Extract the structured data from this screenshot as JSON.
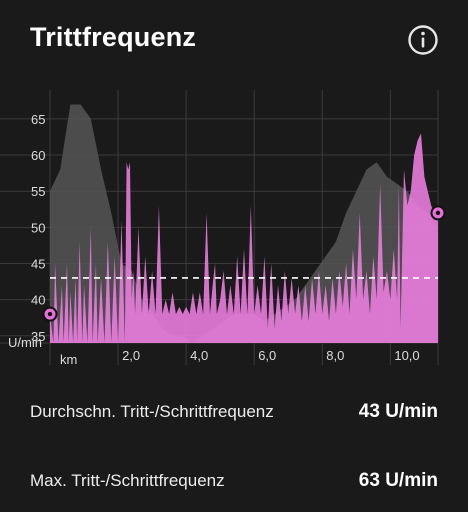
{
  "header": {
    "title": "Trittfrequenz",
    "info_icon": "info-circle-icon"
  },
  "stats": {
    "avg_label": "Durchschn. Tritt-/Schrittfrequenz",
    "avg_value": "43 U/min",
    "max_label": "Max. Tritt-/Schrittfrequenz",
    "max_value": "63 U/min"
  },
  "chart_data": {
    "type": "area",
    "xlabel": "km",
    "ylabel": "U/min",
    "xlim": [
      0,
      11.4
    ],
    "ylim": [
      34,
      69
    ],
    "x_ticks": [
      "2,0",
      "4,0",
      "6,0",
      "8,0",
      "10,0"
    ],
    "x_tick_values": [
      2,
      4,
      6,
      8,
      10
    ],
    "y_ticks": [
      "35",
      "40",
      "45",
      "50",
      "55",
      "60",
      "65"
    ],
    "y_tick_values": [
      35,
      40,
      45,
      50,
      55,
      60,
      65
    ],
    "grid": true,
    "average_line": 43,
    "colors": {
      "cadence": "#ee7ee3",
      "elevation": "#565656",
      "average": "#ffffff",
      "marker": "#e86fd8"
    },
    "start_value": 38,
    "end_value": 52,
    "series": [
      {
        "x": [
          0.0,
          0.1,
          0.15,
          0.25,
          0.35,
          0.4,
          0.5,
          0.55,
          0.6,
          0.68,
          0.75,
          0.8,
          0.87,
          0.95,
          1.0,
          1.1,
          1.2,
          1.25,
          1.35,
          1.4,
          1.5,
          1.6,
          1.7,
          1.8,
          1.9,
          2.0,
          2.1,
          2.2,
          2.25,
          2.3,
          2.35,
          2.4,
          2.45,
          2.5,
          2.6,
          2.7,
          2.8,
          2.9,
          3.0,
          3.1,
          3.2,
          3.3,
          3.4,
          3.5,
          3.6,
          3.7,
          3.8,
          3.9,
          4.0,
          4.1,
          4.2,
          4.3,
          4.4,
          4.5,
          4.6,
          4.7,
          4.8,
          4.85,
          4.9,
          5.0,
          5.1,
          5.2,
          5.3,
          5.4,
          5.5,
          5.6,
          5.7,
          5.8,
          5.9,
          6.0,
          6.1,
          6.2,
          6.3,
          6.4,
          6.5,
          6.6,
          6.7,
          6.8,
          6.9,
          7.0,
          7.1,
          7.2,
          7.3,
          7.4,
          7.5,
          7.6,
          7.7,
          7.8,
          7.9,
          8.0,
          8.1,
          8.2,
          8.3,
          8.4,
          8.5,
          8.6,
          8.7,
          8.8,
          8.9,
          9.0,
          9.1,
          9.2,
          9.3,
          9.4,
          9.5,
          9.6,
          9.7,
          9.8,
          9.9,
          10.0,
          10.1,
          10.2,
          10.25,
          10.3,
          10.4,
          10.5,
          10.6,
          10.7,
          10.8,
          10.9,
          11.0,
          11.1,
          11.2,
          11.3,
          11.4
        ],
        "y": [
          38,
          34,
          45,
          34,
          42,
          34,
          45,
          34,
          41,
          34,
          43,
          34,
          48,
          34,
          42,
          34,
          50,
          34,
          45,
          34,
          43,
          34,
          48,
          34,
          46,
          34,
          51,
          34,
          59,
          58,
          59,
          40,
          44,
          38,
          50,
          38,
          46,
          38,
          44,
          38,
          53,
          38,
          40,
          38,
          41,
          38,
          39,
          38,
          39,
          38,
          41,
          38,
          41,
          38,
          52,
          38,
          43,
          45,
          38,
          40,
          44,
          38,
          42,
          38,
          46,
          38,
          47,
          38,
          53,
          38,
          42,
          38,
          46,
          36,
          45,
          36,
          42,
          37,
          44,
          38,
          43,
          38,
          42,
          37,
          42,
          37,
          43,
          38,
          44,
          38,
          42,
          37,
          43,
          38,
          44,
          39,
          45,
          38,
          47,
          40,
          52,
          40,
          44,
          38,
          46,
          40,
          56,
          41,
          44,
          40,
          47,
          40,
          56,
          36,
          58,
          53,
          55,
          60,
          62,
          63,
          57,
          55,
          53,
          52,
          52
        ]
      }
    ],
    "elevation": {
      "x": [
        0.0,
        0.3,
        0.6,
        0.9,
        1.2,
        1.5,
        1.8,
        2.1,
        2.4,
        2.7,
        3.0,
        3.3,
        3.6,
        3.9,
        4.2,
        4.5,
        4.8,
        5.1,
        5.4,
        5.7,
        6.0,
        6.3,
        6.6,
        6.9,
        7.2,
        7.5,
        7.8,
        8.1,
        8.4,
        8.7,
        9.0,
        9.3,
        9.6,
        9.9,
        10.2,
        10.5,
        10.8,
        11.1,
        11.4
      ],
      "y": [
        55,
        58,
        67,
        67,
        65,
        58,
        52,
        45,
        44,
        40,
        38,
        36,
        35,
        35,
        34,
        35,
        36,
        37,
        38,
        38,
        38,
        37,
        38,
        39,
        40,
        42,
        44,
        46,
        48,
        52,
        55,
        58,
        59,
        57,
        56,
        55,
        53,
        52,
        50
      ]
    }
  }
}
